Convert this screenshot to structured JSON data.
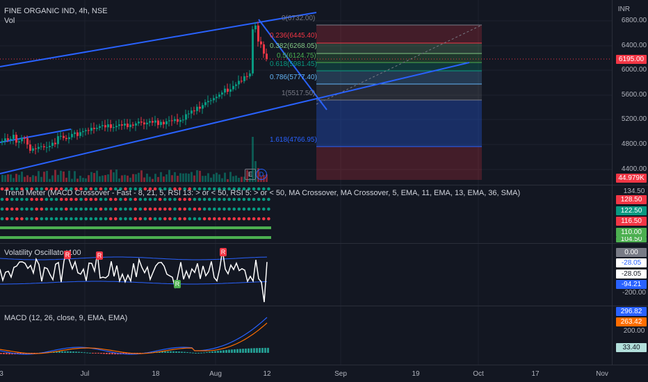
{
  "header": {
    "symbol": "FINE ORGANIC IND, 4h, NSE",
    "vol_label": "Vol",
    "currency": "INR"
  },
  "price_axis": {
    "ticks": [
      "6800.00",
      "6400.00",
      "6000.00",
      "5600.00",
      "5200.00",
      "4800.00",
      "4400.00"
    ],
    "current_price": "6195.00",
    "volume_badge": "44.979K"
  },
  "fib": {
    "levels": [
      {
        "label": "0(6732.00)",
        "color": "#787b86"
      },
      {
        "label": "0.236(6445.40)",
        "color": "#f23645"
      },
      {
        "label": "0.382(6268.05)",
        "color": "#81c784"
      },
      {
        "label": "0.5(6124.75)",
        "color": "#4caf50"
      },
      {
        "label": "0.618(5981.45)",
        "color": "#089981"
      },
      {
        "label": "0.786(5777.40)",
        "color": "#64b5f6"
      },
      {
        "label": "1(5517.50)",
        "color": "#787b86"
      },
      {
        "label": "1.618(4766.95)",
        "color": "#2962ff"
      }
    ]
  },
  "events": {
    "earnings": "E",
    "dividend": "D"
  },
  "trend_meter": {
    "title": "Trend Meter (MACD Crossover - Fast - 8, 21, 5, RSI 13: > or < 50, RSI 5: > or < 50, MA Crossover, MA Crossover, 5, EMA, 11, EMA, 13, EMA, 36, SMA)",
    "axis_top": "134.50",
    "badges": [
      {
        "value": "128.50",
        "color": "#f23645"
      },
      {
        "value": "122.50",
        "color": "#089981"
      },
      {
        "value": "116.50",
        "color": "#f23645"
      },
      {
        "value": "110.00",
        "color": "#4caf50"
      },
      {
        "value": "104.50",
        "color": "#4caf50"
      }
    ]
  },
  "volatility": {
    "title": "Volatility Oscillator 100",
    "marker_r": "R",
    "badges": [
      {
        "value": "0.00",
        "color": "#787b86",
        "text": "#ffffff"
      },
      {
        "value": "-28.05",
        "color": "#ffffff",
        "text": "#2962ff"
      },
      {
        "value": "-28.05",
        "color": "#ffffff",
        "text": "#131722"
      },
      {
        "value": "-94.21",
        "color": "#2962ff",
        "text": "#ffffff"
      }
    ],
    "axis_bottom": "-200.00"
  },
  "macd": {
    "title": "MACD (12, 26, close, 9, EMA, EMA)",
    "badges": [
      {
        "value": "296.82",
        "color": "#2962ff"
      },
      {
        "value": "263.42",
        "color": "#ff6d00"
      }
    ],
    "axis_mid": "200.00",
    "hist_badge": "33.40"
  },
  "time_axis": [
    "3",
    "Jul",
    "18",
    "Aug",
    "12",
    "Sep",
    "19",
    "Oct",
    "17",
    "Nov"
  ]
}
